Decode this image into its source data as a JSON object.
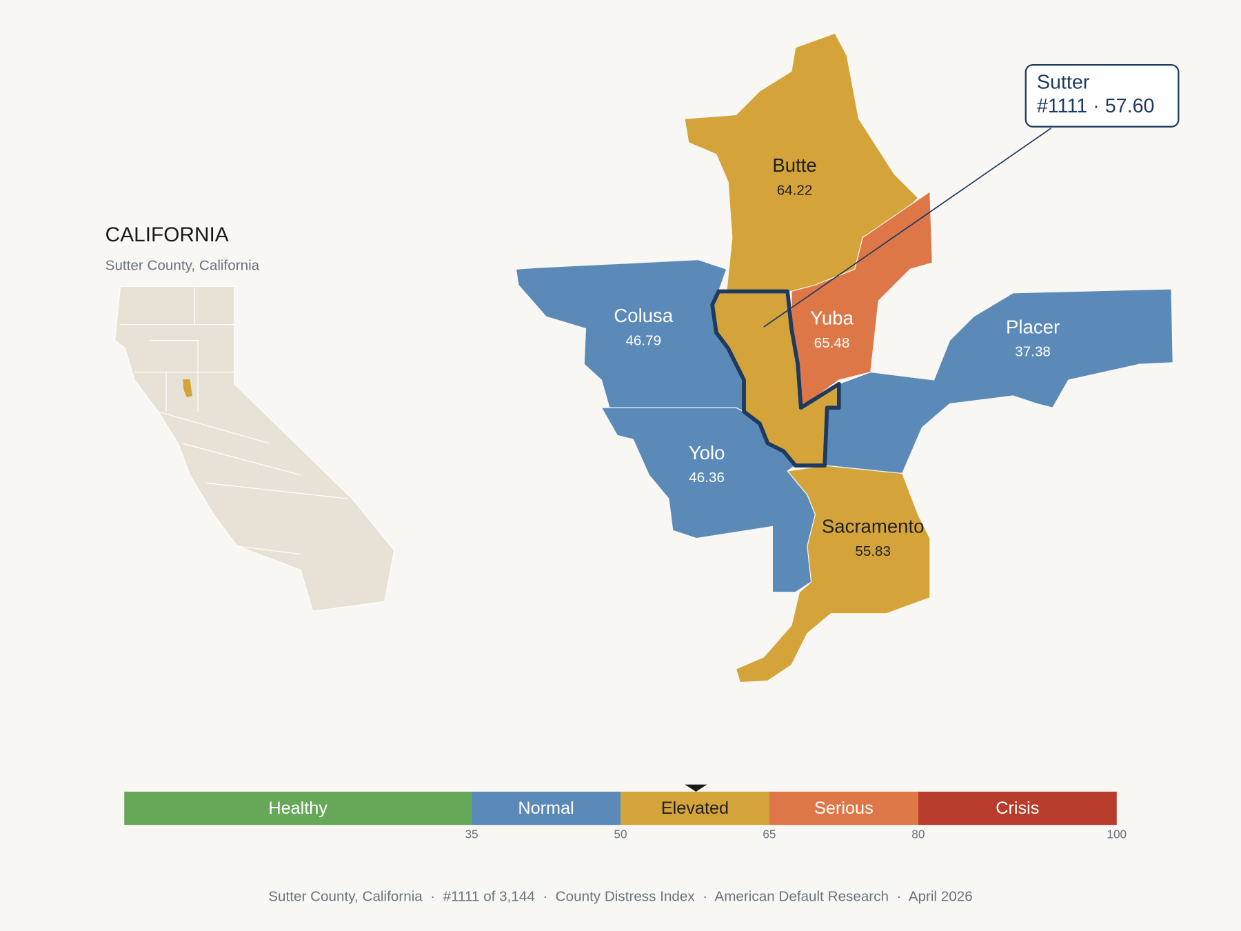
{
  "title": "CALIFORNIA",
  "subtitle": "Sutter County, California",
  "counties": [
    {
      "name": "Butte",
      "value": 64.22
    },
    {
      "name": "Colusa",
      "value": 46.79
    },
    {
      "name": "Yuba",
      "value": 65.48
    },
    {
      "name": "Placer",
      "value": 37.38
    },
    {
      "name": "Yolo",
      "value": 46.36
    },
    {
      "name": "Sacramento",
      "value": 55.83
    }
  ],
  "selected": {
    "name": "Sutter",
    "label": "#1111 · 57.60",
    "value": 57.6
  },
  "scale": {
    "range": [
      0,
      100
    ],
    "ticks": [
      35,
      50,
      65,
      80,
      100
    ],
    "bands": [
      {
        "label": "Healthy",
        "color": "#67a758",
        "text_color": "#ffffff"
      },
      {
        "label": "Normal",
        "color": "#5b8ab9",
        "text_color": "#ffffff"
      },
      {
        "label": "Elevated",
        "color": "#d4a43a",
        "text_color": "#1f1f1f"
      },
      {
        "label": "Serious",
        "color": "#dd7748",
        "text_color": "#ffffff"
      },
      {
        "label": "Crisis",
        "color": "#b83c2b",
        "text_color": "#ffffff"
      }
    ]
  },
  "footer": "Sutter County, California  ·  #1111 of 3,144  ·  County Distress Index  ·  American Default Research  ·  April 2026"
}
